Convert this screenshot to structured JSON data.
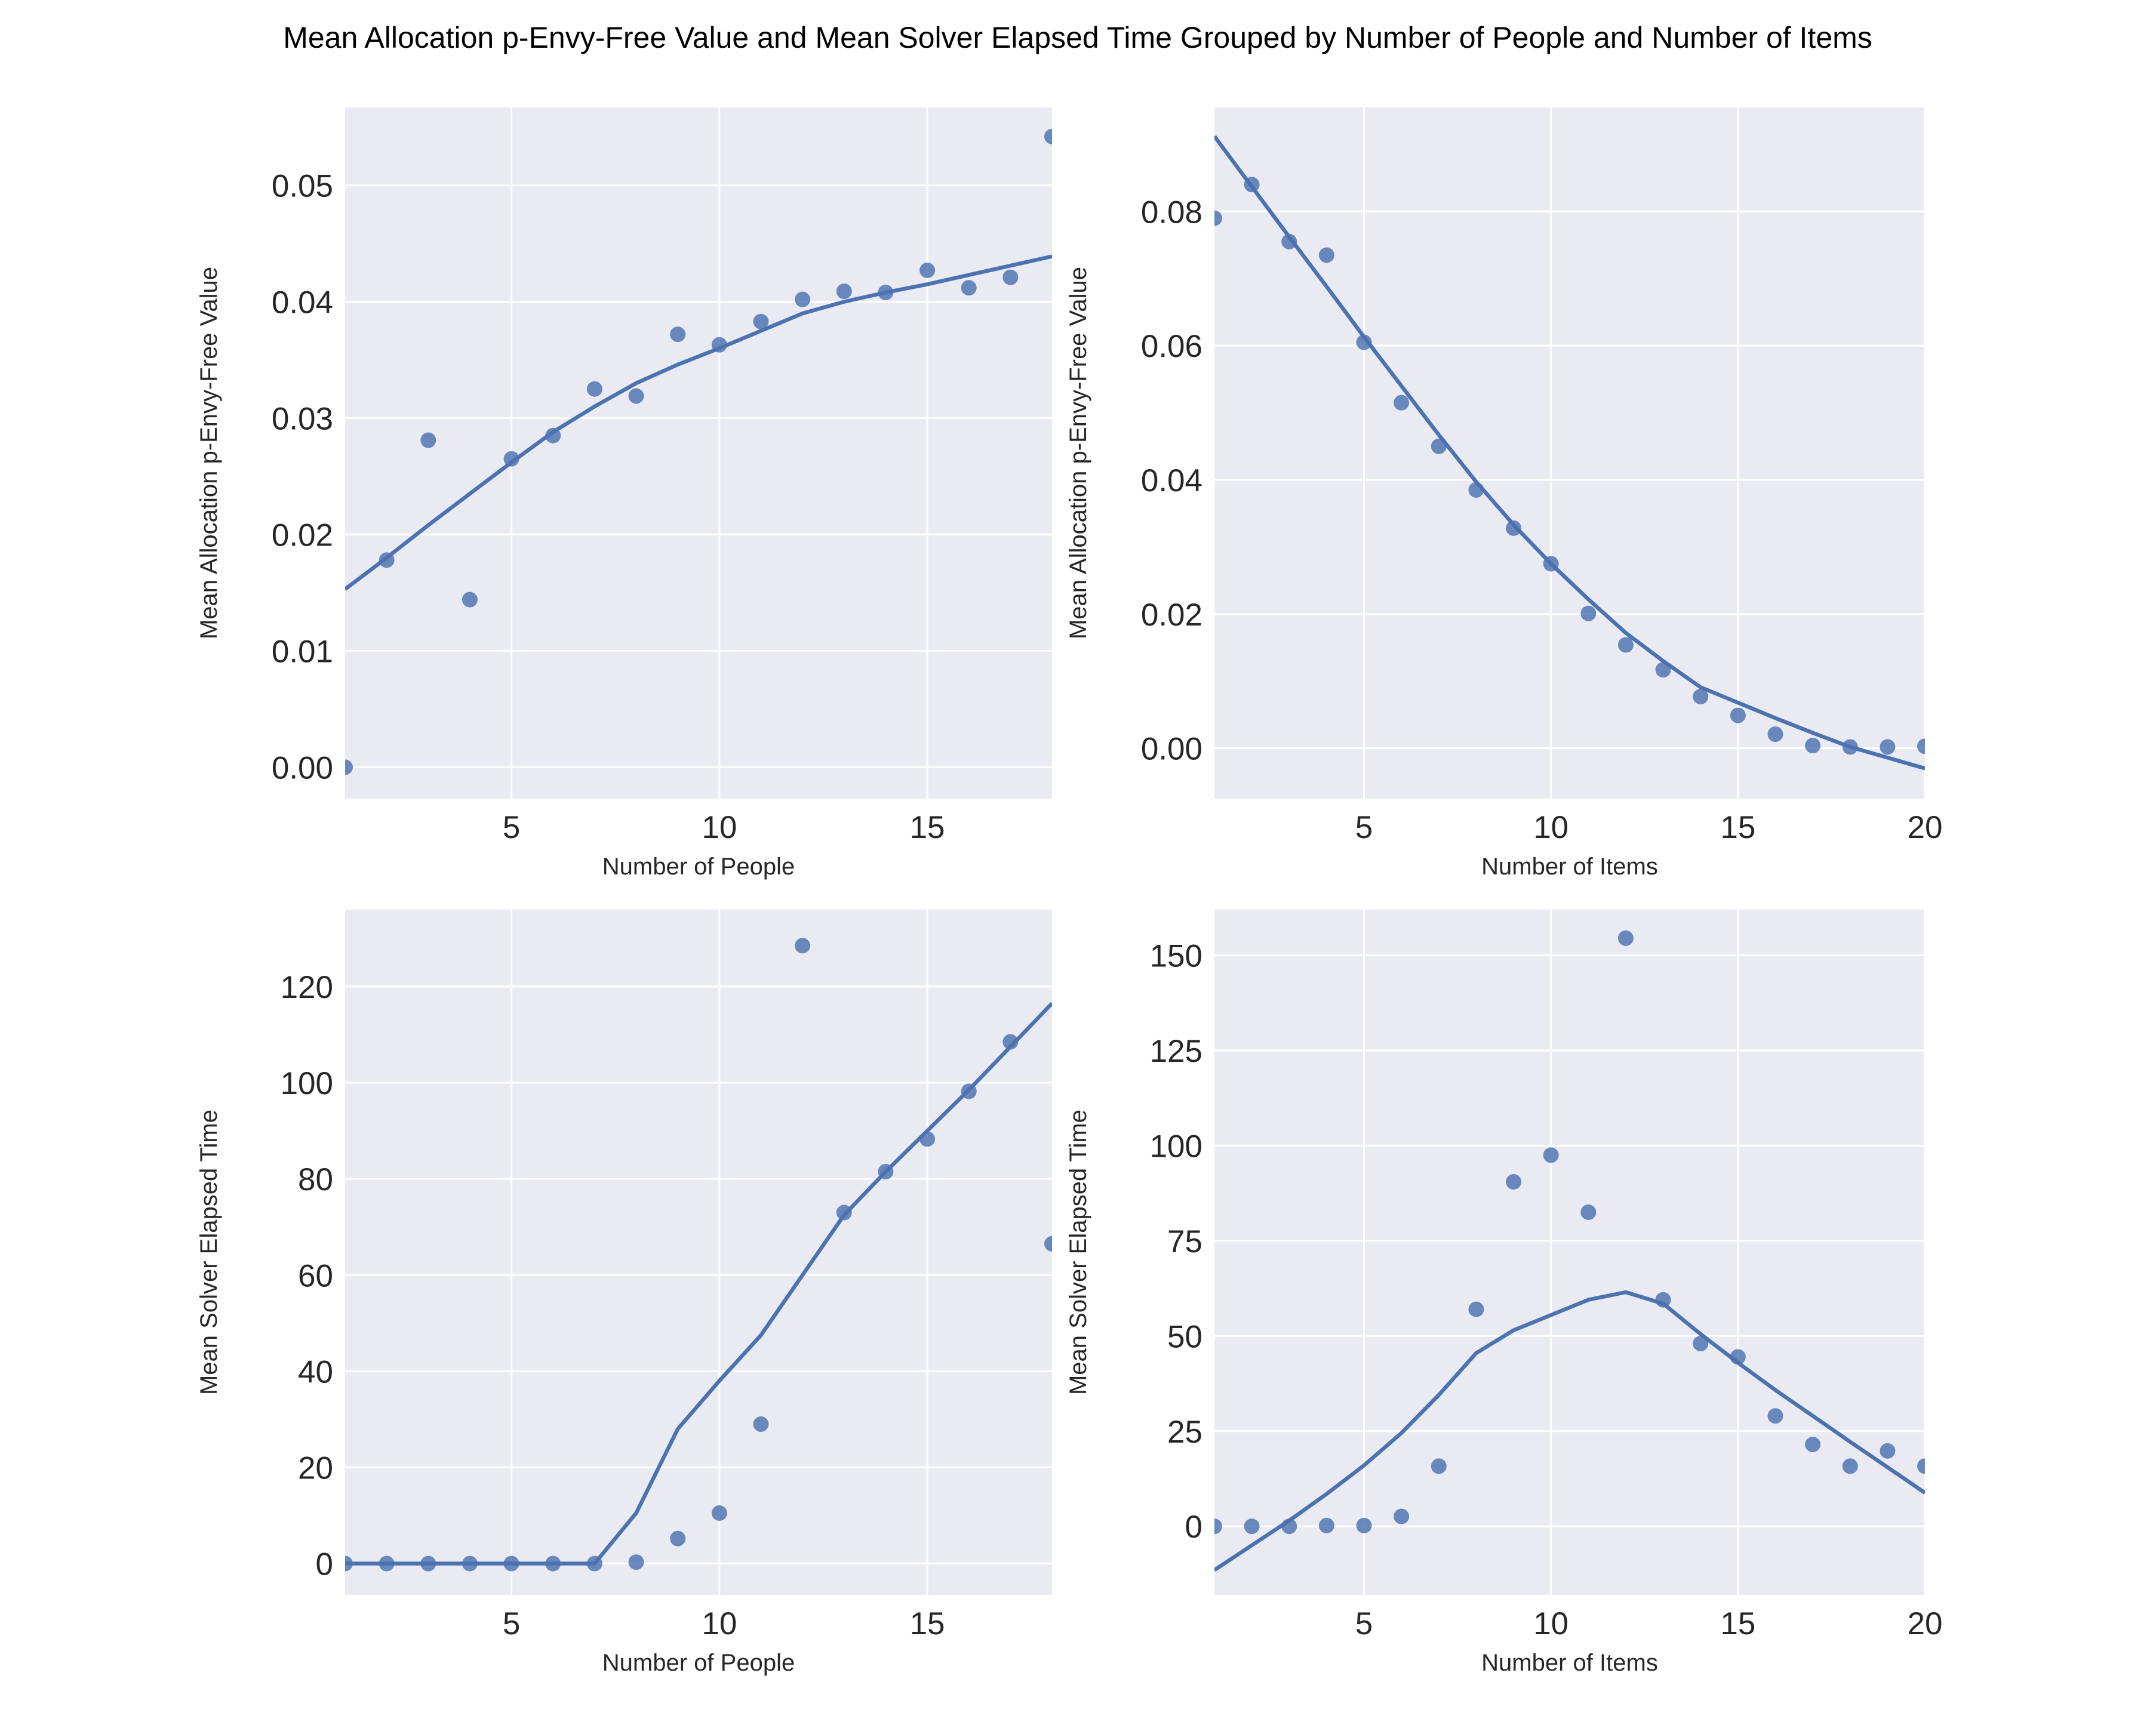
{
  "figure": {
    "title": "Mean Allocation p-Envy-Free Value and Mean Solver Elapsed Time Grouped by Number of People and Number of Items"
  },
  "style": {
    "background": "#eaeaf2",
    "grid": "#ffffff",
    "series_color": "#4c72b0"
  },
  "chart_data": [
    {
      "type": "scatter",
      "xlabel": "Number of People",
      "ylabel": "Mean Allocation p-Envy-Free Value",
      "xlim": [
        1,
        18
      ],
      "ylim": [
        -0.0027,
        0.0567
      ],
      "xticks": [
        5,
        10,
        15
      ],
      "xticklabels": [
        "5",
        "10",
        "15"
      ],
      "yticks": [
        0,
        0.01,
        0.02,
        0.03,
        0.04,
        0.05
      ],
      "yticklabels": [
        "0.00",
        "0.01",
        "0.02",
        "0.03",
        "0.04",
        "0.05"
      ],
      "grid": true,
      "points": {
        "x": [
          1,
          2,
          3,
          4,
          5,
          6,
          7,
          8,
          9,
          10,
          11,
          12,
          13,
          14,
          15,
          16,
          17,
          18
        ],
        "y": [
          0.0,
          0.0178,
          0.0281,
          0.0144,
          0.0265,
          0.0285,
          0.0325,
          0.0319,
          0.0372,
          0.0363,
          0.0383,
          0.0402,
          0.0409,
          0.0408,
          0.0427,
          0.0412,
          0.0421,
          0.0542
        ]
      },
      "fit": {
        "x": [
          1,
          2,
          3,
          4,
          5,
          6,
          7,
          8,
          9,
          10,
          11,
          12,
          13,
          14,
          15,
          16,
          17,
          18
        ],
        "y": [
          0.0153,
          0.018,
          0.0208,
          0.0235,
          0.0262,
          0.0288,
          0.031,
          0.033,
          0.0346,
          0.036,
          0.0375,
          0.039,
          0.04,
          0.0408,
          0.0415,
          0.0423,
          0.0431,
          0.0439
        ]
      }
    },
    {
      "type": "scatter",
      "xlabel": "Number of Items",
      "ylabel": "Mean Allocation p-Envy-Free Value",
      "xlim": [
        1,
        20
      ],
      "ylim": [
        -0.0075,
        0.0955
      ],
      "xticks": [
        5,
        10,
        15,
        20
      ],
      "xticklabels": [
        "5",
        "10",
        "15",
        "20"
      ],
      "yticks": [
        0,
        0.02,
        0.04,
        0.06,
        0.08
      ],
      "yticklabels": [
        "0.00",
        "0.02",
        "0.04",
        "0.06",
        "0.08"
      ],
      "grid": true,
      "points": {
        "x": [
          1,
          2,
          3,
          4,
          5,
          6,
          7,
          8,
          9,
          10,
          11,
          12,
          13,
          14,
          15,
          16,
          17,
          18,
          19,
          20
        ],
        "y": [
          0.079,
          0.084,
          0.0755,
          0.0735,
          0.0605,
          0.0515,
          0.045,
          0.0385,
          0.0328,
          0.0275,
          0.0201,
          0.0154,
          0.0117,
          0.0077,
          0.0049,
          0.0021,
          0.0004,
          0.0002,
          0.0002,
          0.0003
        ]
      },
      "fit": {
        "x": [
          1,
          2,
          3,
          4,
          5,
          6,
          7,
          8,
          9,
          10,
          11,
          12,
          13,
          14,
          15,
          16,
          17,
          18,
          19,
          20
        ],
        "y": [
          0.0912,
          0.0837,
          0.0762,
          0.0688,
          0.0613,
          0.054,
          0.0467,
          0.0397,
          0.0333,
          0.0275,
          0.0222,
          0.0172,
          0.013,
          0.0091,
          0.0068,
          0.0045,
          0.0023,
          0.0002,
          -0.0014,
          -0.003
        ]
      }
    },
    {
      "type": "scatter",
      "xlabel": "Number of People",
      "ylabel": "Mean Solver Elapsed Time",
      "xlim": [
        1,
        18
      ],
      "ylim": [
        -6.5,
        136
      ],
      "xticks": [
        5,
        10,
        15
      ],
      "xticklabels": [
        "5",
        "10",
        "15"
      ],
      "yticks": [
        0,
        20,
        40,
        60,
        80,
        100,
        120
      ],
      "yticklabels": [
        "0",
        "20",
        "40",
        "60",
        "80",
        "100",
        "120"
      ],
      "grid": true,
      "points": {
        "x": [
          1,
          2,
          3,
          4,
          5,
          6,
          7,
          8,
          9,
          10,
          11,
          12,
          13,
          14,
          15,
          16,
          17,
          18
        ],
        "y": [
          0,
          0,
          0,
          0,
          0,
          0,
          0,
          0.3,
          5.2,
          10.5,
          29,
          128.5,
          73,
          81.5,
          88.3,
          98.2,
          108.5,
          66.5
        ]
      },
      "fit": {
        "x": [
          1,
          2,
          3,
          4,
          5,
          6,
          7,
          8,
          9,
          10,
          11,
          12,
          13,
          14,
          15,
          16,
          17,
          18
        ],
        "y": [
          0,
          0,
          0,
          0,
          0,
          0,
          0,
          10.5,
          28,
          38,
          47.5,
          60,
          72.5,
          81.5,
          90,
          98.5,
          107.5,
          116.5
        ]
      }
    },
    {
      "type": "scatter",
      "xlabel": "Number of Items",
      "ylabel": "Mean Solver Elapsed Time",
      "xlim": [
        1,
        20
      ],
      "ylim": [
        -18,
        162
      ],
      "xticks": [
        5,
        10,
        15,
        20
      ],
      "xticklabels": [
        "5",
        "10",
        "15",
        "20"
      ],
      "yticks": [
        0,
        25,
        50,
        75,
        100,
        125,
        150
      ],
      "yticklabels": [
        "0",
        "25",
        "50",
        "75",
        "100",
        "125",
        "150"
      ],
      "grid": true,
      "points": {
        "x": [
          1,
          2,
          3,
          4,
          5,
          6,
          7,
          8,
          9,
          10,
          11,
          12,
          13,
          14,
          15,
          16,
          17,
          18,
          19,
          20
        ],
        "y": [
          0,
          0,
          0,
          0.2,
          0.2,
          2.6,
          15.8,
          57,
          90.5,
          97.5,
          82.5,
          154.5,
          59.5,
          48,
          44.5,
          29,
          21.5,
          15.8,
          19.8,
          15.8
        ]
      },
      "fit": {
        "x": [
          1,
          2,
          3,
          4,
          5,
          6,
          7,
          8,
          9,
          10,
          11,
          12,
          13,
          14,
          15,
          16,
          17,
          18,
          19,
          20
        ],
        "y": [
          -11.5,
          -5,
          1.5,
          8.5,
          16,
          24.5,
          34.5,
          45.5,
          51.5,
          55.5,
          59.5,
          61.5,
          58.5,
          50.5,
          43,
          35.8,
          29,
          22.2,
          15.5,
          8.8
        ]
      }
    }
  ]
}
